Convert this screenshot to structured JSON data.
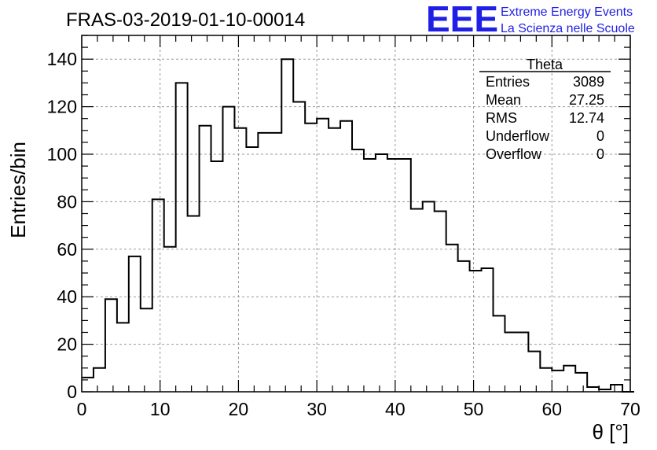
{
  "chart_data": {
    "type": "bar",
    "title": "FRAS-03-2019-01-10-00014",
    "xlabel": "θ [°]",
    "ylabel": "Entries/bin",
    "xlim": [
      0,
      70
    ],
    "ylim": [
      0,
      150
    ],
    "grid": true,
    "x_ticks": [
      0,
      10,
      20,
      30,
      40,
      50,
      60,
      70
    ],
    "y_ticks": [
      0,
      20,
      40,
      60,
      80,
      100,
      120,
      140
    ],
    "bin_width": 1.5,
    "bin_start": 0,
    "values": [
      6,
      10,
      39,
      29,
      57,
      35,
      81,
      61,
      130,
      74,
      112,
      97,
      120,
      111,
      103,
      109,
      109,
      140,
      122,
      113,
      115,
      111,
      114,
      102,
      98,
      100,
      98,
      98,
      77,
      80,
      76,
      62,
      55,
      51,
      52,
      32,
      25,
      25,
      17,
      10,
      9,
      11,
      8,
      2,
      1,
      3,
      0
    ],
    "stats": {
      "name": "Theta",
      "rows": [
        {
          "label": "Entries",
          "value": "3089"
        },
        {
          "label": "Mean",
          "value": "27.25"
        },
        {
          "label": "RMS",
          "value": "12.74"
        },
        {
          "label": "Underflow",
          "value": "0"
        },
        {
          "label": "Overflow",
          "value": "0"
        }
      ]
    }
  },
  "logo": {
    "mark": "EEE",
    "line1": "Extreme Energy Events",
    "line2": "La Scienza nelle Scuole",
    "color": "#1f1fe6"
  }
}
